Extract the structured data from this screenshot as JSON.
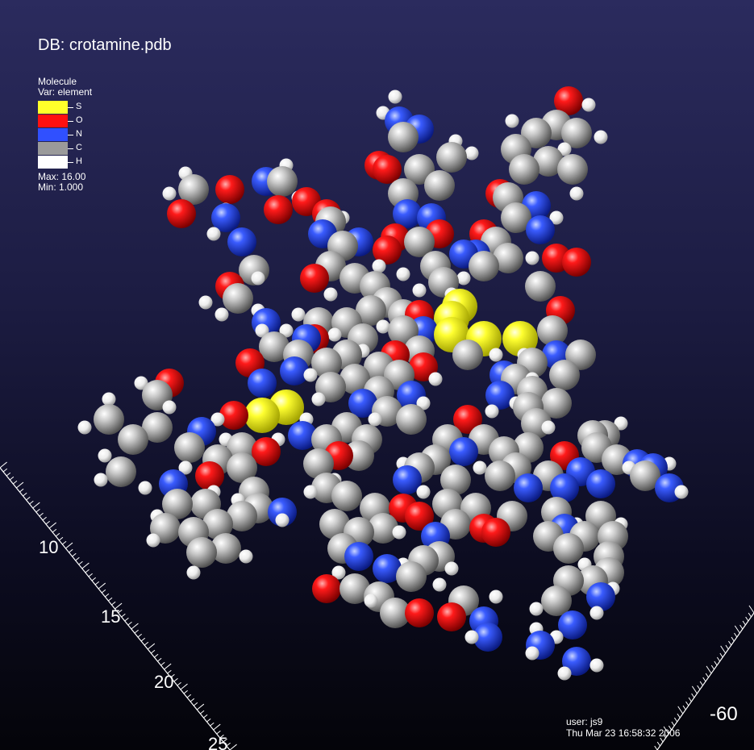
{
  "db_title": "DB: crotamine.pdb",
  "legend": {
    "title": "Molecule",
    "variable": "Var: element",
    "entries": [
      {
        "label": "S",
        "color": "#ffff2a"
      },
      {
        "label": "O",
        "color": "#ff1010"
      },
      {
        "label": "N",
        "color": "#3050ff"
      },
      {
        "label": "C",
        "color": "#9a9a9a"
      },
      {
        "label": "H",
        "color": "#ffffff"
      }
    ],
    "max": "Max:  16.00",
    "min": "Min:  1.000"
  },
  "axes": {
    "tick_10": "10",
    "tick_15": "15",
    "tick_20": "20",
    "tick_25": "25",
    "tick_neg60": "-60"
  },
  "user_info": {
    "user": "user: js9",
    "datetime": "Thu Mar 23 16:58:32 2006"
  }
}
